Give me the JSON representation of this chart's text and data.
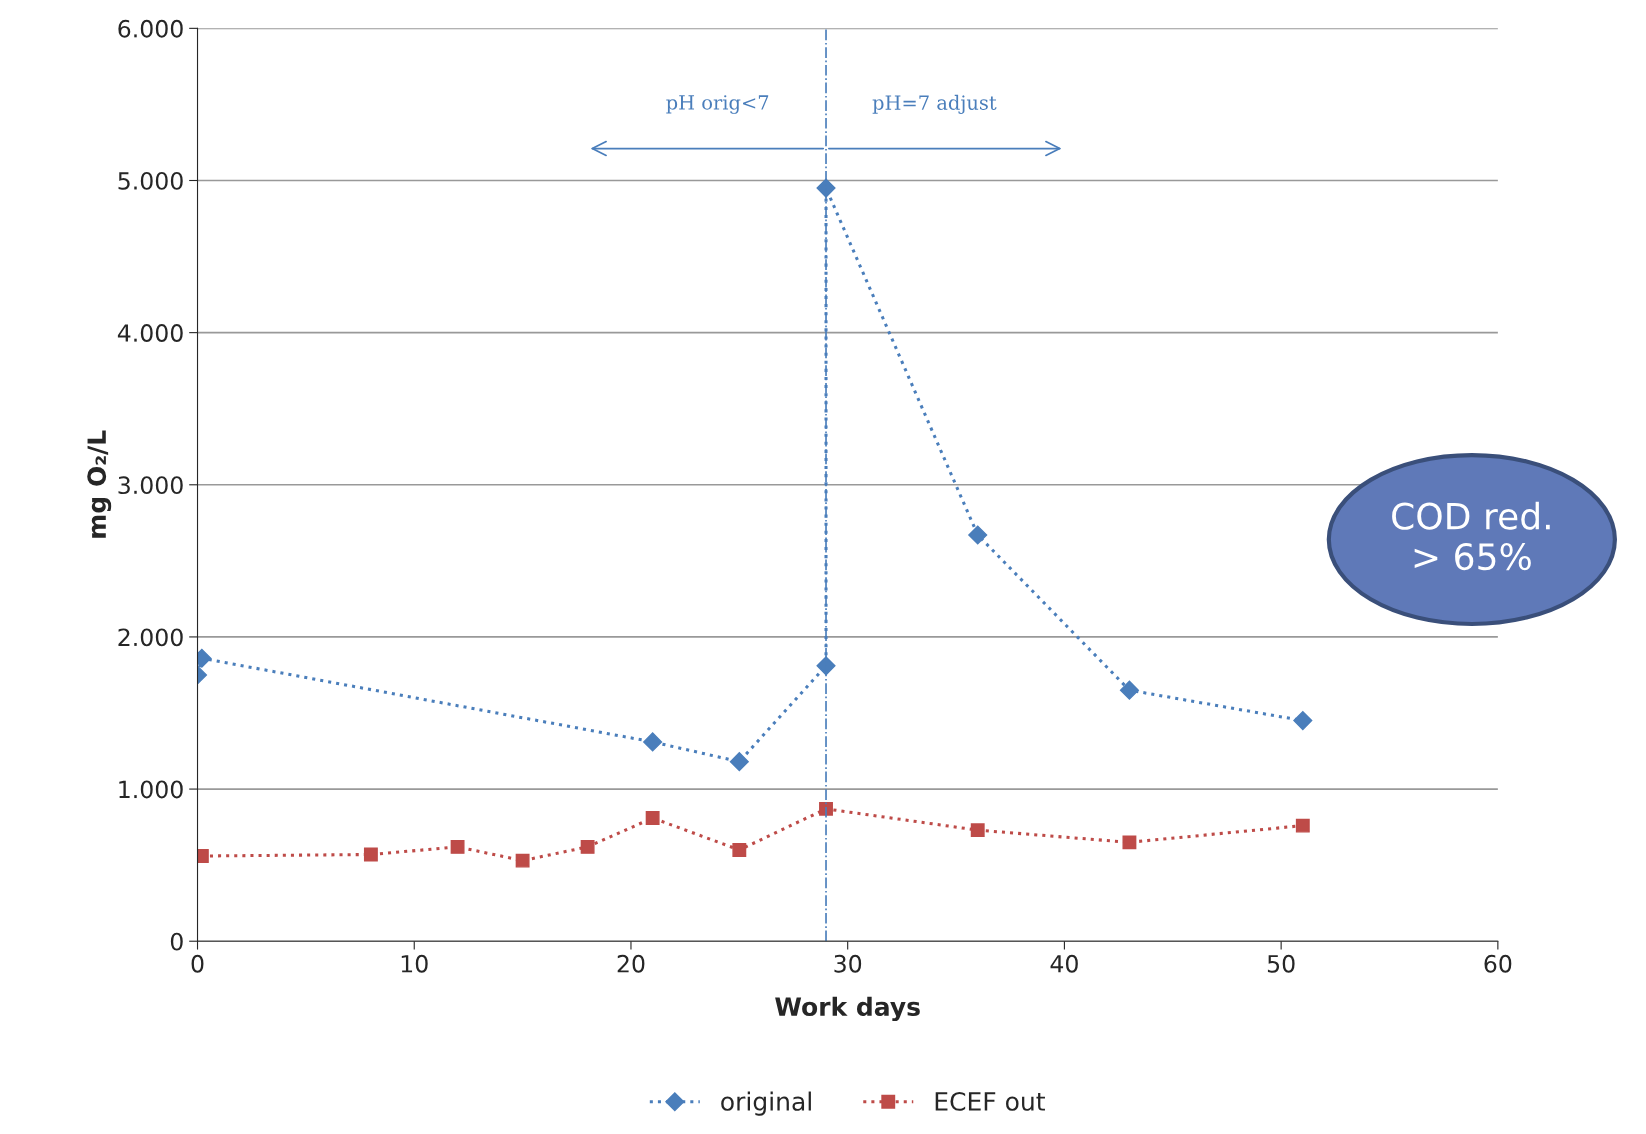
{
  "chart_data": {
    "type": "line",
    "xlabel": "Work days",
    "ylabel": "mg O₂/L",
    "xlim": [
      0,
      60
    ],
    "xticks": [
      0,
      10,
      20,
      30,
      40,
      50,
      60
    ],
    "ylim": [
      0,
      6000
    ],
    "yticks": [
      {
        "value": 0,
        "label": "0"
      },
      {
        "value": 1000,
        "label": "1.000"
      },
      {
        "value": 2000,
        "label": "2.000"
      },
      {
        "value": 3000,
        "label": "3.000"
      },
      {
        "value": 4000,
        "label": "4.000"
      },
      {
        "value": 5000,
        "label": "5.000"
      },
      {
        "value": 6000,
        "label": "6.000"
      }
    ],
    "series": [
      {
        "name": "original",
        "color": "#4a7ebb",
        "marker": "diamond",
        "x": [
          0,
          0.2,
          21,
          25,
          29,
          29,
          36,
          43,
          51
        ],
        "values": [
          1750,
          1860,
          1310,
          1180,
          1810,
          4950,
          2670,
          1650,
          1450
        ]
      },
      {
        "name": "ECEF out",
        "color": "#be4b48",
        "marker": "square",
        "x": [
          0.2,
          8,
          12,
          15,
          18,
          21,
          25,
          29,
          36,
          43,
          51
        ],
        "values": [
          560,
          570,
          620,
          530,
          620,
          810,
          600,
          870,
          730,
          650,
          760
        ]
      }
    ],
    "line_style": "dotted",
    "ref_lines": [
      {
        "axis": "x",
        "value": 29,
        "color": "#4a7ebb",
        "line_style": "dashdot"
      }
    ],
    "annotations": [
      "pH orig<7",
      "pH=7 adjust",
      "COD red.\n> 65%"
    ],
    "grid": "y",
    "legend": "bottom"
  }
}
